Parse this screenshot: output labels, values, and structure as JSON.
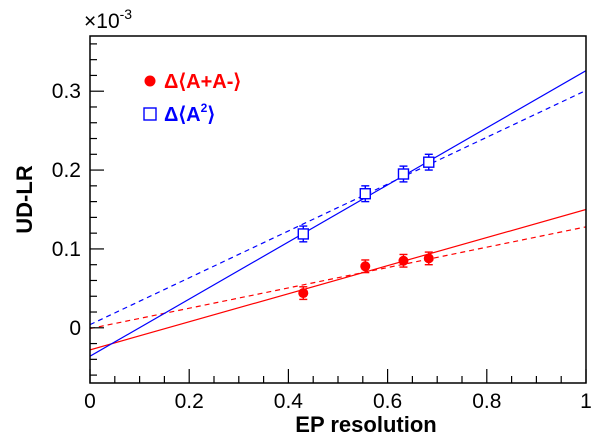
{
  "chart_data": {
    "type": "scatter",
    "title": "",
    "xlabel": "EP resolution",
    "ylabel": "UD-LR",
    "xlim": [
      0,
      1
    ],
    "ylim": [
      -0.07,
      0.37
    ],
    "y_scale_label": "×10",
    "y_scale_exponent": "-3",
    "x_ticks": [
      0,
      0.2,
      0.4,
      0.6,
      0.8,
      1
    ],
    "x_tick_labels": [
      "0",
      "0.2",
      "0.4",
      "0.6",
      "0.8",
      "1"
    ],
    "y_ticks": [
      0,
      0.1,
      0.2,
      0.3
    ],
    "y_tick_labels": [
      "0",
      "0.1",
      "0.2",
      "0.3"
    ],
    "grid": false,
    "legend_position": "top-left",
    "series": [
      {
        "name": "Δ⟨A+A-⟩",
        "legend_main": "Δ⟨A+A-⟩",
        "legend_sup": "",
        "marker": "filled-circle",
        "color": "#ff0000",
        "x": [
          0.43,
          0.555,
          0.632,
          0.683
        ],
        "y": [
          0.044,
          0.078,
          0.085,
          0.088
        ],
        "yerr": [
          0.008,
          0.008,
          0.008,
          0.008
        ],
        "fit_solid": {
          "x": [
            0,
            1
          ],
          "y": [
            -0.028,
            0.15
          ]
        },
        "fit_dashed": {
          "x": [
            0,
            1
          ],
          "y": [
            -0.001,
            0.128
          ]
        }
      },
      {
        "name": "Δ⟨A²⟩",
        "legend_main": "Δ⟨A",
        "legend_sup": "2",
        "legend_tail": "⟩",
        "marker": "open-square",
        "color": "#0000ff",
        "x": [
          0.43,
          0.555,
          0.632,
          0.683
        ],
        "y": [
          0.119,
          0.17,
          0.195,
          0.21
        ],
        "yerr": [
          0.01,
          0.01,
          0.01,
          0.01
        ],
        "fit_solid": {
          "x": [
            0,
            1
          ],
          "y": [
            -0.036,
            0.326
          ]
        },
        "fit_dashed": {
          "x": [
            0,
            1
          ],
          "y": [
            0.004,
            0.301
          ]
        }
      }
    ]
  }
}
